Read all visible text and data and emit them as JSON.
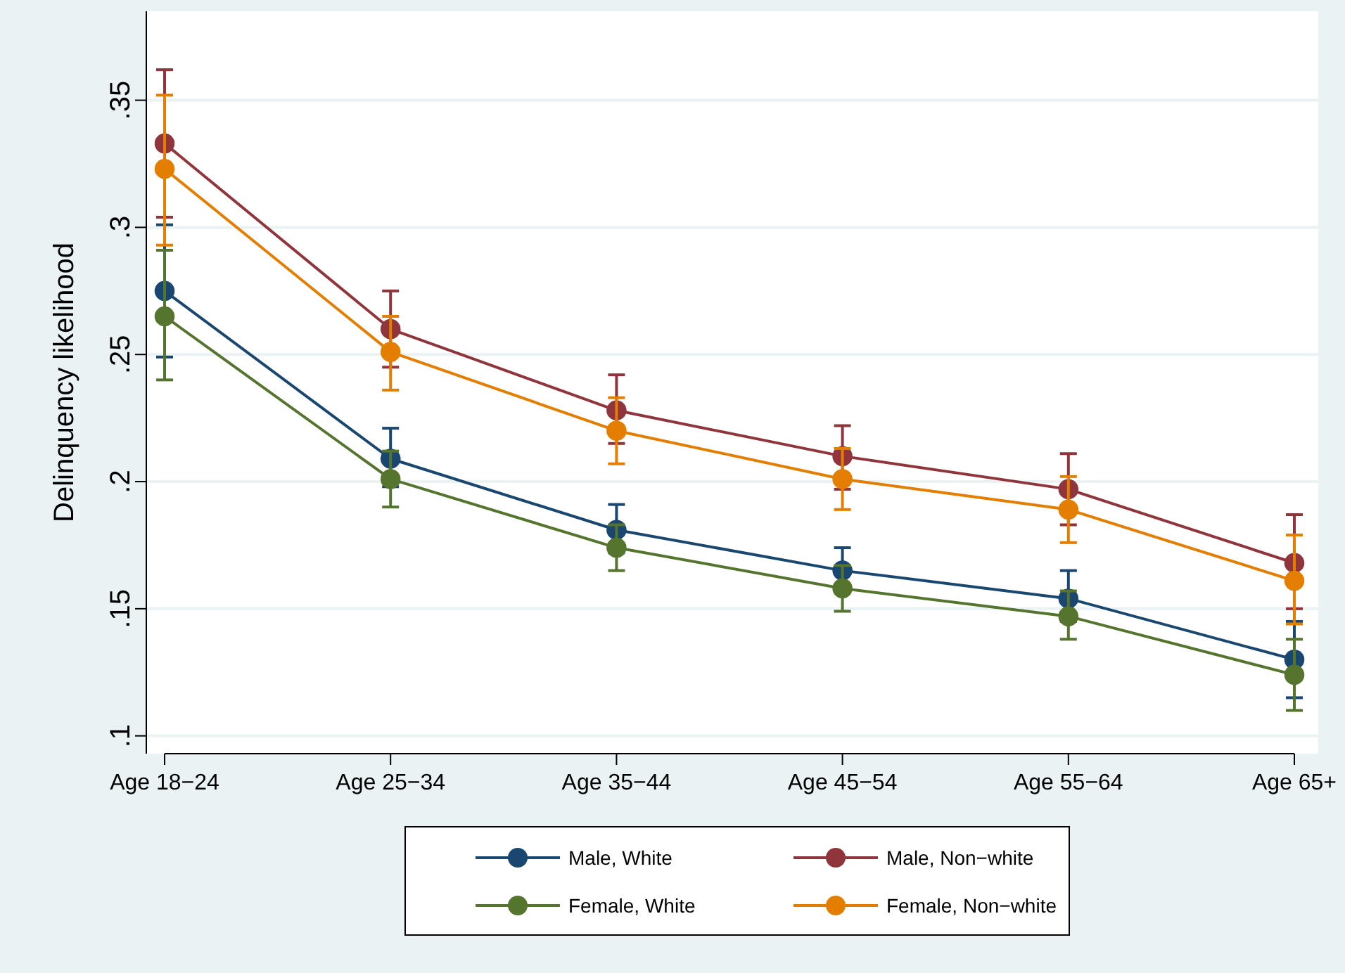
{
  "chart_data": {
    "type": "line",
    "ylabel": "Delinquency likelihood",
    "categories": [
      "Age 18−24",
      "Age 25−34",
      "Age 35−44",
      "Age 45−54",
      "Age 55−64",
      "Age 65+"
    ],
    "ylim": [
      0.093,
      0.385
    ],
    "yticks": [
      {
        "value": 0.1,
        "label": ".1"
      },
      {
        "value": 0.15,
        "label": ".15"
      },
      {
        "value": 0.2,
        "label": ".2"
      },
      {
        "value": 0.25,
        "label": ".25"
      },
      {
        "value": 0.3,
        "label": ".3"
      },
      {
        "value": 0.35,
        "label": ".35"
      }
    ],
    "grid": "y",
    "legend": "bottom",
    "marker": "circle",
    "series": [
      {
        "name": "Male, White",
        "color": "#1a476f",
        "values": [
          0.275,
          0.209,
          0.181,
          0.165,
          0.154,
          0.13
        ],
        "errors": [
          [
            0.249,
            0.301
          ],
          [
            0.198,
            0.221
          ],
          [
            0.172,
            0.191
          ],
          [
            0.165,
            0.174
          ],
          [
            0.145,
            0.165
          ],
          [
            0.115,
            0.145
          ]
        ]
      },
      {
        "name": "Male, Non−white",
        "color": "#90353b",
        "values": [
          0.333,
          0.26,
          0.228,
          0.21,
          0.197,
          0.168
        ],
        "errors": [
          [
            0.304,
            0.362
          ],
          [
            0.245,
            0.275
          ],
          [
            0.215,
            0.242
          ],
          [
            0.197,
            0.222
          ],
          [
            0.183,
            0.211
          ],
          [
            0.15,
            0.187
          ]
        ]
      },
      {
        "name": "Female, White",
        "color": "#55752f",
        "values": [
          0.265,
          0.201,
          0.174,
          0.158,
          0.147,
          0.124
        ],
        "errors": [
          [
            0.24,
            0.291
          ],
          [
            0.19,
            0.212
          ],
          [
            0.165,
            0.183
          ],
          [
            0.149,
            0.167
          ],
          [
            0.138,
            0.157
          ],
          [
            0.11,
            0.138
          ]
        ]
      },
      {
        "name": "Female, Non−white",
        "color": "#e37e00",
        "values": [
          0.323,
          0.251,
          0.22,
          0.201,
          0.189,
          0.161
        ],
        "errors": [
          [
            0.293,
            0.352
          ],
          [
            0.236,
            0.265
          ],
          [
            0.207,
            0.233
          ],
          [
            0.189,
            0.213
          ],
          [
            0.176,
            0.202
          ],
          [
            0.144,
            0.179
          ]
        ]
      }
    ]
  }
}
